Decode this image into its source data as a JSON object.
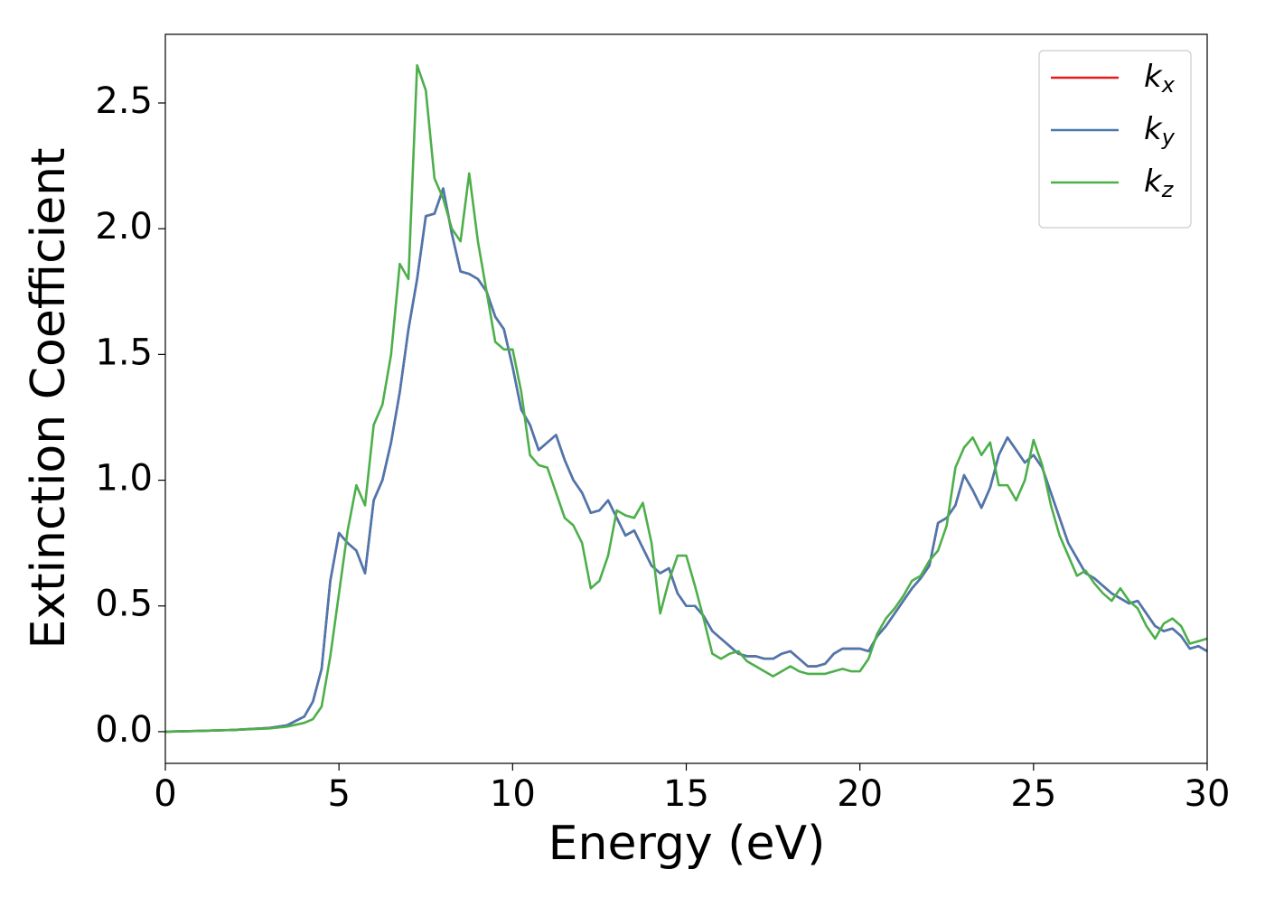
{
  "chart_data": {
    "type": "line",
    "xlabel": "Energy (eV)",
    "ylabel": "Extinction Coefficient",
    "x": [
      0,
      1,
      2,
      3,
      3.5,
      4,
      4.25,
      4.5,
      4.75,
      5,
      5.25,
      5.5,
      5.75,
      6,
      6.25,
      6.5,
      6.75,
      7,
      7.25,
      7.5,
      7.75,
      8,
      8.25,
      8.5,
      8.75,
      9,
      9.25,
      9.5,
      9.75,
      10,
      10.25,
      10.5,
      10.75,
      11,
      11.25,
      11.5,
      11.75,
      12,
      12.25,
      12.5,
      12.75,
      13,
      13.25,
      13.5,
      13.75,
      14,
      14.25,
      14.5,
      14.75,
      15,
      15.25,
      15.5,
      15.75,
      16,
      16.25,
      16.5,
      16.75,
      17,
      17.25,
      17.5,
      17.75,
      18,
      18.25,
      18.5,
      18.75,
      19,
      19.25,
      19.5,
      19.75,
      20,
      20.25,
      20.5,
      20.75,
      21,
      21.25,
      21.5,
      21.75,
      22,
      22.25,
      22.5,
      22.75,
      23,
      23.25,
      23.5,
      23.75,
      24,
      24.25,
      24.5,
      24.75,
      25,
      25.25,
      25.5,
      25.75,
      26,
      26.25,
      26.5,
      26.75,
      27,
      27.25,
      27.5,
      27.75,
      28,
      28.25,
      28.5,
      28.75,
      29,
      29.25,
      29.5,
      29.75,
      30
    ],
    "series": [
      {
        "name": "kx",
        "color": "#e41a1c",
        "values": [
          0,
          0.003,
          0.007,
          0.015,
          0.025,
          0.06,
          0.12,
          0.25,
          0.6,
          0.79,
          0.75,
          0.72,
          0.63,
          0.92,
          1.0,
          1.15,
          1.35,
          1.6,
          1.8,
          2.05,
          2.06,
          2.16,
          1.98,
          1.83,
          1.82,
          1.8,
          1.75,
          1.65,
          1.6,
          1.45,
          1.28,
          1.22,
          1.12,
          1.15,
          1.18,
          1.08,
          1.0,
          0.95,
          0.87,
          0.88,
          0.92,
          0.85,
          0.78,
          0.8,
          0.73,
          0.66,
          0.63,
          0.65,
          0.55,
          0.5,
          0.5,
          0.46,
          0.4,
          0.37,
          0.34,
          0.31,
          0.3,
          0.3,
          0.29,
          0.29,
          0.31,
          0.32,
          0.29,
          0.26,
          0.26,
          0.27,
          0.31,
          0.33,
          0.33,
          0.33,
          0.32,
          0.38,
          0.42,
          0.47,
          0.52,
          0.57,
          0.61,
          0.66,
          0.83,
          0.85,
          0.9,
          1.02,
          0.96,
          0.89,
          0.97,
          1.1,
          1.17,
          1.12,
          1.07,
          1.1,
          1.05,
          0.95,
          0.85,
          0.75,
          0.69,
          0.63,
          0.61,
          0.58,
          0.55,
          0.53,
          0.51,
          0.52,
          0.47,
          0.42,
          0.4,
          0.41,
          0.38,
          0.33,
          0.34,
          0.32
        ]
      },
      {
        "name": "ky",
        "color": "#4a78b0",
        "values": [
          0,
          0.003,
          0.007,
          0.015,
          0.025,
          0.06,
          0.12,
          0.25,
          0.6,
          0.79,
          0.75,
          0.72,
          0.63,
          0.92,
          1.0,
          1.15,
          1.35,
          1.6,
          1.8,
          2.05,
          2.06,
          2.16,
          1.98,
          1.83,
          1.82,
          1.8,
          1.75,
          1.65,
          1.6,
          1.45,
          1.28,
          1.22,
          1.12,
          1.15,
          1.18,
          1.08,
          1.0,
          0.95,
          0.87,
          0.88,
          0.92,
          0.85,
          0.78,
          0.8,
          0.73,
          0.66,
          0.63,
          0.65,
          0.55,
          0.5,
          0.5,
          0.46,
          0.4,
          0.37,
          0.34,
          0.31,
          0.3,
          0.3,
          0.29,
          0.29,
          0.31,
          0.32,
          0.29,
          0.26,
          0.26,
          0.27,
          0.31,
          0.33,
          0.33,
          0.33,
          0.32,
          0.38,
          0.42,
          0.47,
          0.52,
          0.57,
          0.61,
          0.66,
          0.83,
          0.85,
          0.9,
          1.02,
          0.96,
          0.89,
          0.97,
          1.1,
          1.17,
          1.12,
          1.07,
          1.1,
          1.05,
          0.95,
          0.85,
          0.75,
          0.69,
          0.63,
          0.61,
          0.58,
          0.55,
          0.53,
          0.51,
          0.52,
          0.47,
          0.42,
          0.4,
          0.41,
          0.38,
          0.33,
          0.34,
          0.32
        ]
      },
      {
        "name": "kz",
        "color": "#4daf4a",
        "values": [
          0,
          0.003,
          0.007,
          0.013,
          0.02,
          0.035,
          0.05,
          0.1,
          0.3,
          0.55,
          0.8,
          0.98,
          0.9,
          1.22,
          1.3,
          1.5,
          1.86,
          1.8,
          2.65,
          2.55,
          2.2,
          2.12,
          2.0,
          1.95,
          2.22,
          1.95,
          1.75,
          1.55,
          1.52,
          1.52,
          1.35,
          1.1,
          1.06,
          1.05,
          0.95,
          0.85,
          0.82,
          0.75,
          0.57,
          0.6,
          0.7,
          0.88,
          0.86,
          0.85,
          0.91,
          0.75,
          0.47,
          0.6,
          0.7,
          0.7,
          0.58,
          0.45,
          0.31,
          0.29,
          0.31,
          0.32,
          0.28,
          0.26,
          0.24,
          0.22,
          0.24,
          0.26,
          0.24,
          0.23,
          0.23,
          0.23,
          0.24,
          0.25,
          0.24,
          0.24,
          0.29,
          0.39,
          0.45,
          0.49,
          0.54,
          0.6,
          0.62,
          0.68,
          0.72,
          0.82,
          1.05,
          1.13,
          1.17,
          1.1,
          1.15,
          0.98,
          0.98,
          0.92,
          1.0,
          1.16,
          1.06,
          0.9,
          0.78,
          0.7,
          0.62,
          0.64,
          0.59,
          0.55,
          0.52,
          0.57,
          0.52,
          0.49,
          0.42,
          0.37,
          0.43,
          0.45,
          0.42,
          0.35,
          0.36,
          0.37
        ]
      }
    ],
    "xlim": [
      0,
      30
    ],
    "xticks": [
      0,
      5,
      10,
      15,
      20,
      25,
      30
    ],
    "ylim": [
      -0.126,
      2.773
    ],
    "yticks": [
      {
        "value": 0,
        "label": "0.0"
      },
      0.5,
      {
        "value": 1,
        "label": "1.0"
      },
      1.5,
      {
        "value": 2,
        "label": "2.0"
      },
      2.5
    ],
    "legend": "upper right"
  }
}
